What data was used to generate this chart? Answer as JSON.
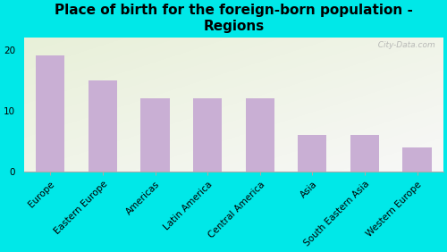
{
  "title": "Place of birth for the foreign-born population -\nRegions",
  "categories": [
    "Europe",
    "Eastern Europe",
    "Americas",
    "Latin America",
    "Central America",
    "Asia",
    "South Eastern Asia",
    "Western Europe"
  ],
  "values": [
    19,
    15,
    12,
    12,
    12,
    6,
    6,
    4
  ],
  "bar_color": "#c9afd4",
  "background_outer": "#00e8e8",
  "background_inner_topleft": "#e8f0d8",
  "background_inner_botright": "#f0f0f0",
  "ylim": [
    0,
    22
  ],
  "yticks": [
    0,
    10,
    20
  ],
  "title_fontsize": 11,
  "tick_fontsize": 7.5,
  "watermark": "  City-Data.com"
}
